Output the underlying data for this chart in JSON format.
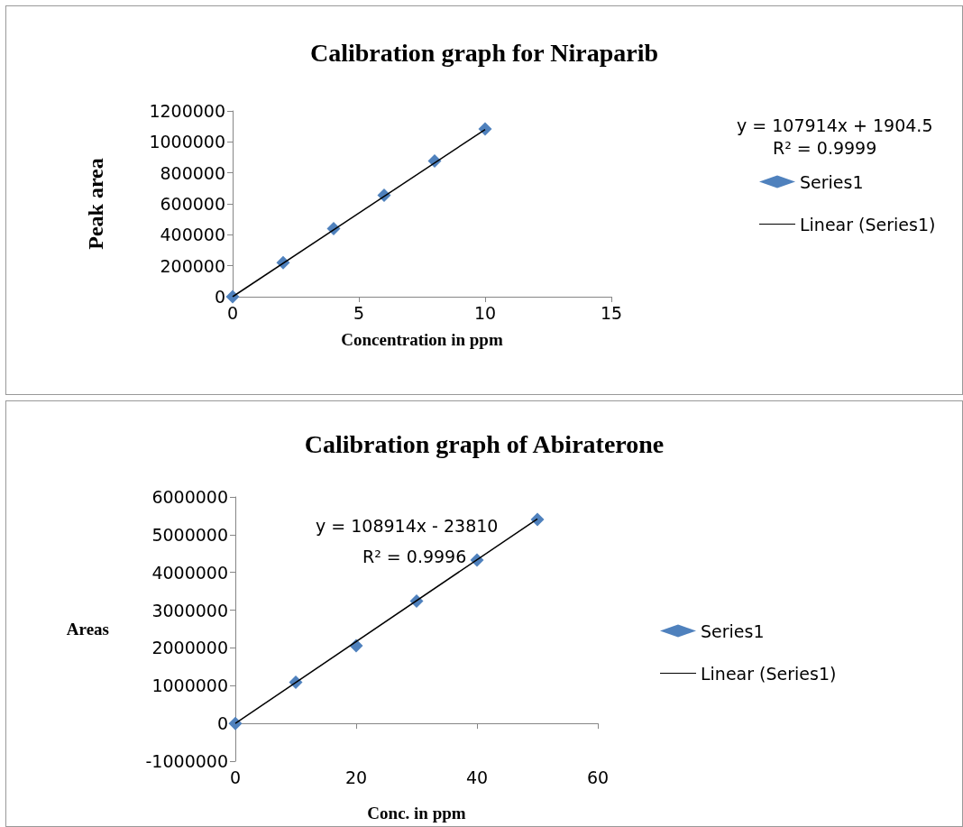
{
  "chart_data": [
    {
      "type": "scatter",
      "title": "Calibration graph for Niraparib",
      "xlabel": "Concentration in ppm",
      "ylabel": "Peak area",
      "x": [
        0,
        2,
        4,
        6,
        8,
        10
      ],
      "series": [
        {
          "name": "Series1",
          "marker": "diamond",
          "color": "#4f81bd",
          "values": [
            0,
            220000,
            440000,
            656000,
            876000,
            1084000
          ]
        },
        {
          "name": "Linear (Series1)",
          "type": "line",
          "marker": "none",
          "line_style": "solid",
          "color": "#000000",
          "x": [
            0,
            10
          ],
          "values": [
            0,
            1080000
          ]
        }
      ],
      "xlim": [
        0,
        15
      ],
      "xticks": [
        0,
        5,
        10,
        15
      ],
      "ylim": [
        0,
        1200000
      ],
      "yticks": [
        0,
        200000,
        400000,
        600000,
        800000,
        1000000,
        1200000
      ],
      "legend": "right",
      "annotations": [
        "y = 107914x + 1904.5",
        "R² = 0.9999"
      ]
    },
    {
      "type": "scatter",
      "title": "Calibration graph of Abiraterone",
      "xlabel": "Conc. in ppm",
      "ylabel": "Areas",
      "x": [
        0,
        10,
        20,
        30,
        40,
        50
      ],
      "series": [
        {
          "name": "Series1",
          "marker": "diamond",
          "color": "#4f81bd",
          "values": [
            0,
            1090000,
            2060000,
            3240000,
            4330000,
            5400000
          ]
        },
        {
          "name": "Linear (Series1)",
          "type": "line",
          "marker": "none",
          "line_style": "solid",
          "color": "#000000",
          "x": [
            0,
            50
          ],
          "values": [
            0,
            5420000
          ]
        }
      ],
      "xlim": [
        0,
        60
      ],
      "xticks": [
        0,
        20,
        40,
        60
      ],
      "ylim": [
        -1000000,
        6000000
      ],
      "yticks": [
        -1000000,
        0,
        1000000,
        2000000,
        3000000,
        4000000,
        5000000,
        6000000
      ],
      "legend": "right",
      "annotations": [
        "y = 108914x - 23810",
        "R² = 0.9996"
      ]
    }
  ]
}
